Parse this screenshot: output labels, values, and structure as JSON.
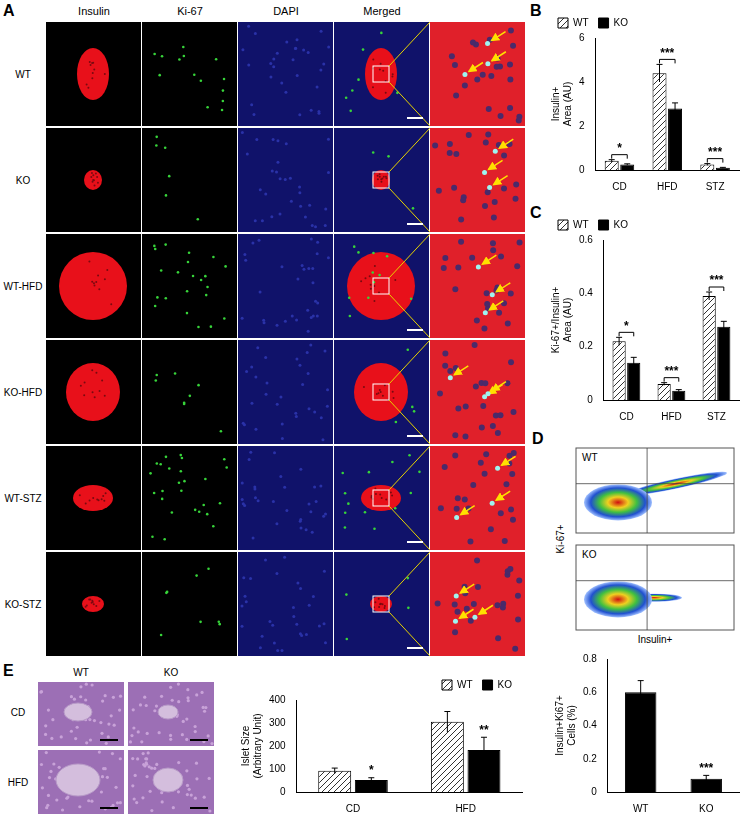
{
  "figure": {
    "panel_a": {
      "label": "A",
      "columns": [
        "Insulin",
        "Ki-67",
        "DAPI",
        "Merged"
      ],
      "rows": [
        "WT",
        "KO",
        "WT-HFD",
        "KO-HFD",
        "WT-STZ",
        "KO-STZ"
      ]
    },
    "panel_d": {
      "label": "D",
      "plots": [
        "WT",
        "KO"
      ],
      "x_label": "Insulin+",
      "y_label": "Ki-67+"
    },
    "panel_e": {
      "label": "E",
      "columns": [
        "WT",
        "KO"
      ],
      "rows": [
        "CD",
        "HFD"
      ]
    }
  },
  "chart_data": [
    {
      "panel": "B",
      "type": "bar",
      "categories": [
        "CD",
        "HFD",
        "STZ"
      ],
      "series": [
        {
          "name": "WT",
          "color": "#333333",
          "values": [
            0.42,
            4.4,
            0.25
          ],
          "errors": [
            0.05,
            0.4,
            0.04
          ]
        },
        {
          "name": "KO",
          "color": "#000000",
          "values": [
            0.25,
            2.8,
            0.1
          ],
          "errors": [
            0.03,
            0.25,
            0.02
          ]
        }
      ],
      "y_label": [
        "Insulin+",
        "Area (AU)"
      ],
      "ylim": [
        0,
        6
      ],
      "yticks": [
        0,
        2,
        4,
        6
      ],
      "grid": false,
      "legend": "top-left",
      "annotations": [
        {
          "category": "CD",
          "text": "*"
        },
        {
          "category": "HFD",
          "text": "***"
        },
        {
          "category": "STZ",
          "text": "***"
        }
      ]
    },
    {
      "panel": "C",
      "type": "bar",
      "categories": [
        "CD",
        "HFD",
        "STZ"
      ],
      "series": [
        {
          "name": "WT",
          "color": "#333333",
          "values": [
            0.22,
            0.06,
            0.39
          ],
          "errors": [
            0.015,
            0.005,
            0.015
          ]
        },
        {
          "name": "KO",
          "color": "#000000",
          "values": [
            0.14,
            0.035,
            0.275
          ],
          "errors": [
            0.02,
            0.004,
            0.02
          ]
        }
      ],
      "y_label": [
        "Ki-67+/Insulin+",
        "Area (AU)"
      ],
      "ylim": [
        0,
        0.6
      ],
      "yticks": [
        0,
        0.2,
        0.4,
        0.6
      ],
      "grid": false,
      "legend": "top-left",
      "annotations": [
        {
          "category": "CD",
          "text": "*"
        },
        {
          "category": "HFD",
          "text": "***"
        },
        {
          "category": "STZ",
          "text": "***"
        }
      ]
    },
    {
      "type": "bar",
      "categories": [
        "WT",
        "KO"
      ],
      "values": [
        0.6,
        0.08
      ],
      "errors": [
        0.07,
        0.02
      ],
      "color": "#000000",
      "y_label": [
        "Insulin+Ki67+",
        "Cells (%)"
      ],
      "ylim": [
        0,
        0.8
      ],
      "yticks": [
        0,
        0.2,
        0.4,
        0.6,
        0.8
      ],
      "grid": false,
      "annotations": [
        {
          "category": "KO",
          "text": "***"
        }
      ]
    },
    {
      "type": "bar",
      "categories": [
        "CD",
        "HFD"
      ],
      "series": [
        {
          "name": "WT",
          "color": "#333333",
          "values": [
            92,
            305
          ],
          "errors": [
            12,
            45
          ]
        },
        {
          "name": "KO",
          "color": "#000000",
          "values": [
            52,
            183
          ],
          "errors": [
            10,
            55
          ]
        }
      ],
      "y_label": [
        "Islet Size",
        "(Arbitrary Unit)"
      ],
      "ylim": [
        0,
        400
      ],
      "yticks": [
        0,
        100,
        200,
        300,
        400
      ],
      "grid": false,
      "legend": "top-right",
      "annotations": [
        {
          "category": "CD",
          "series": "KO",
          "text": "*"
        },
        {
          "category": "HFD",
          "series": "KO",
          "text": "**"
        }
      ]
    }
  ]
}
